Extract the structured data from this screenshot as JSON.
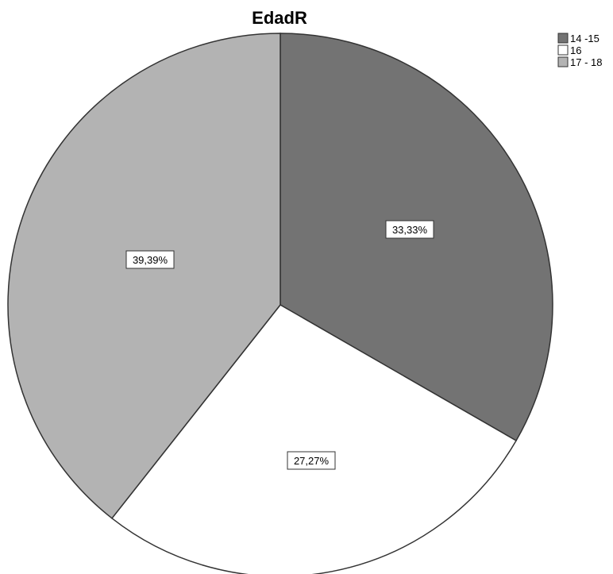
{
  "chart_data": {
    "type": "pie",
    "title": "EdadR",
    "legend_position": "top-right",
    "slices": [
      {
        "label": "14 -15",
        "value": 33.33,
        "value_label": "33,33%",
        "color": "#737373"
      },
      {
        "label": "16",
        "value": 27.27,
        "value_label": "27,27%",
        "color": "#ffffff"
      },
      {
        "label": "17 - 18",
        "value": 39.39,
        "value_label": "39,39%",
        "color": "#b3b3b3"
      }
    ]
  }
}
